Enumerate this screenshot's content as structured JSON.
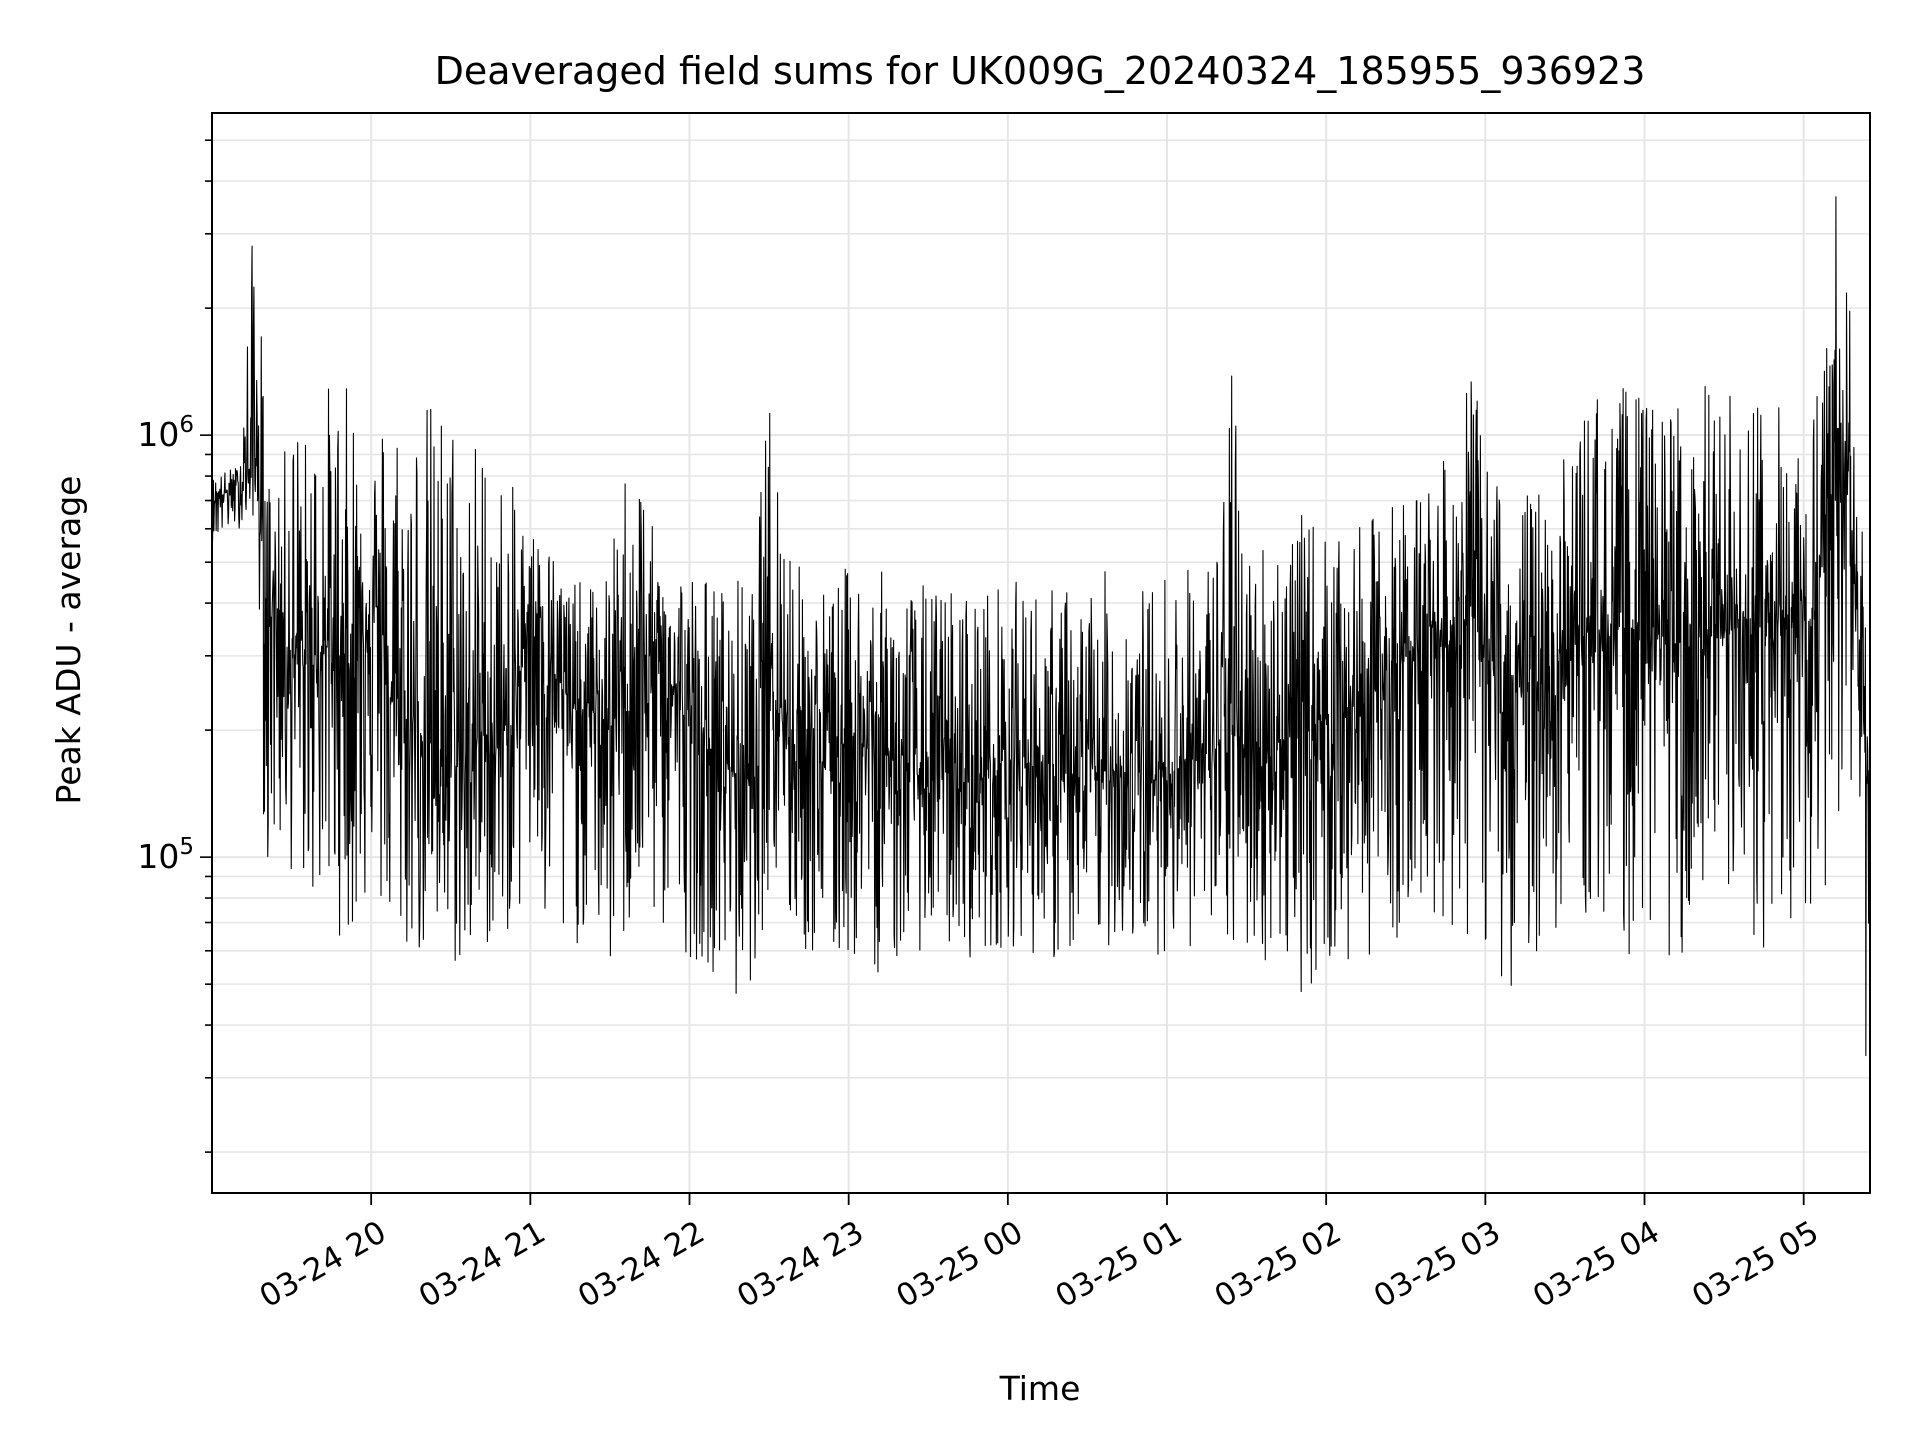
{
  "chart_data": {
    "type": "line",
    "title": "Deaveraged field sums for UK009G_20240324_185955_936923",
    "xlabel": "Time",
    "ylabel": "Peak ADU - average",
    "x_type": "datetime",
    "xlim": [
      "2024-03-24 19:00",
      "2024-03-25 05:25"
    ],
    "ylim": [
      16000,
      5800000
    ],
    "y_scale": "log",
    "grid": true,
    "line_color": "#000000",
    "grid_color": "#e6e6e6",
    "x_ticks": [
      {
        "t": "2024-03-24 20:00",
        "label": "03-24 20"
      },
      {
        "t": "2024-03-24 21:00",
        "label": "03-24 21"
      },
      {
        "t": "2024-03-24 22:00",
        "label": "03-24 22"
      },
      {
        "t": "2024-03-24 23:00",
        "label": "03-24 23"
      },
      {
        "t": "2024-03-25 00:00",
        "label": "03-25 00"
      },
      {
        "t": "2024-03-25 01:00",
        "label": "03-25 01"
      },
      {
        "t": "2024-03-25 02:00",
        "label": "03-25 02"
      },
      {
        "t": "2024-03-25 03:00",
        "label": "03-25 03"
      },
      {
        "t": "2024-03-25 04:00",
        "label": "03-25 04"
      },
      {
        "t": "2024-03-25 05:00",
        "label": "03-25 05"
      }
    ],
    "y_ticks": [
      {
        "value": 100000,
        "base": "10",
        "exp": "5"
      },
      {
        "value": 1000000,
        "base": "10",
        "exp": "6"
      }
    ],
    "series": [
      {
        "x": [
          "2024-03-24 19:00",
          "2024-03-24 19:10",
          "2024-03-24 19:17",
          "2024-03-24 19:20",
          "2024-03-24 19:25",
          "2024-03-24 19:30",
          "2024-03-24 19:36",
          "2024-03-24 19:42",
          "2024-03-24 19:48",
          "2024-03-24 19:54",
          "2024-03-24 20:00",
          "2024-03-24 20:06",
          "2024-03-24 20:12",
          "2024-03-24 20:18",
          "2024-03-24 20:24",
          "2024-03-24 20:30",
          "2024-03-24 20:36",
          "2024-03-24 20:42",
          "2024-03-24 20:48",
          "2024-03-24 20:54",
          "2024-03-24 21:00",
          "2024-03-24 21:06",
          "2024-03-24 21:12",
          "2024-03-24 21:18",
          "2024-03-24 21:24",
          "2024-03-24 21:30",
          "2024-03-24 21:36",
          "2024-03-24 21:42",
          "2024-03-24 21:48",
          "2024-03-24 21:54",
          "2024-03-24 22:00",
          "2024-03-24 22:06",
          "2024-03-24 22:12",
          "2024-03-24 22:18",
          "2024-03-24 22:24",
          "2024-03-24 22:30",
          "2024-03-24 22:36",
          "2024-03-24 22:42",
          "2024-03-24 22:48",
          "2024-03-24 22:54",
          "2024-03-24 23:00",
          "2024-03-24 23:06",
          "2024-03-24 23:12",
          "2024-03-24 23:18",
          "2024-03-24 23:24",
          "2024-03-24 23:30",
          "2024-03-24 23:36",
          "2024-03-24 23:42",
          "2024-03-24 23:48",
          "2024-03-24 23:54",
          "2024-03-25 00:00",
          "2024-03-25 00:06",
          "2024-03-25 00:12",
          "2024-03-25 00:18",
          "2024-03-25 00:24",
          "2024-03-25 00:30",
          "2024-03-25 00:36",
          "2024-03-25 00:42",
          "2024-03-25 00:48",
          "2024-03-25 00:54",
          "2024-03-25 01:00",
          "2024-03-25 01:06",
          "2024-03-25 01:12",
          "2024-03-25 01:18",
          "2024-03-25 01:24",
          "2024-03-25 01:30",
          "2024-03-25 01:36",
          "2024-03-25 01:42",
          "2024-03-25 01:48",
          "2024-03-25 01:54",
          "2024-03-25 02:00",
          "2024-03-25 02:06",
          "2024-03-25 02:12",
          "2024-03-25 02:18",
          "2024-03-25 02:24",
          "2024-03-25 02:30",
          "2024-03-25 02:36",
          "2024-03-25 02:42",
          "2024-03-25 02:48",
          "2024-03-25 02:54",
          "2024-03-25 03:00",
          "2024-03-25 03:06",
          "2024-03-25 03:12",
          "2024-03-25 03:18",
          "2024-03-25 03:24",
          "2024-03-25 03:30",
          "2024-03-25 03:36",
          "2024-03-25 03:42",
          "2024-03-25 03:48",
          "2024-03-25 03:54",
          "2024-03-25 04:00",
          "2024-03-25 04:06",
          "2024-03-25 04:12",
          "2024-03-25 04:18",
          "2024-03-25 04:24",
          "2024-03-25 04:30",
          "2024-03-25 04:36",
          "2024-03-25 04:42",
          "2024-03-25 04:48",
          "2024-03-25 04:54",
          "2024-03-25 05:00",
          "2024-03-25 05:06",
          "2024-03-25 05:10",
          "2024-03-25 05:15",
          "2024-03-25 05:20",
          "2024-03-25 05:25"
        ],
        "y_high": [
          800000,
          850000,
          4600000,
          900000,
          700000,
          1300000,
          1000000,
          1400000,
          1300000,
          1350000,
          900000,
          1350000,
          1250000,
          1300000,
          1250000,
          1300000,
          1050000,
          1050000,
          850000,
          750000,
          600000,
          600000,
          500000,
          450000,
          450000,
          500000,
          900000,
          900000,
          500000,
          550000,
          500000,
          480000,
          450000,
          470000,
          450000,
          1300000,
          800000,
          480000,
          450000,
          450000,
          500000,
          500000,
          480000,
          450000,
          450000,
          450000,
          450000,
          450000,
          450000,
          450000,
          450000,
          460000,
          450000,
          440000,
          450000,
          450000,
          480000,
          460000,
          450000,
          450000,
          500000,
          500000,
          500000,
          550000,
          1550000,
          600000,
          600000,
          650000,
          650000,
          650000,
          600000,
          550000,
          600000,
          650000,
          700000,
          750000,
          800000,
          850000,
          900000,
          1600000,
          900000,
          800000,
          750000,
          750000,
          800000,
          900000,
          1200000,
          1300000,
          1200000,
          1400000,
          1200000,
          1200000,
          1300000,
          1300000,
          1350000,
          1250000,
          1300000,
          1350000,
          1200000,
          1250000,
          1250000,
          1400000,
          3800000,
          4300000,
          1000000,
          300000
        ],
        "y_mid": [
          700000,
          760000,
          850000,
          420000,
          380000,
          300000,
          280000,
          320000,
          300000,
          280000,
          450000,
          250000,
          200000,
          200000,
          180000,
          170000,
          160000,
          200000,
          180000,
          200000,
          450000,
          300000,
          250000,
          220000,
          220000,
          200000,
          250000,
          280000,
          280000,
          250000,
          200000,
          180000,
          170000,
          160000,
          150000,
          350000,
          200000,
          180000,
          170000,
          170000,
          200000,
          180000,
          180000,
          170000,
          160000,
          150000,
          160000,
          150000,
          150000,
          160000,
          170000,
          170000,
          160000,
          150000,
          150000,
          150000,
          160000,
          160000,
          160000,
          150000,
          160000,
          170000,
          170000,
          180000,
          200000,
          180000,
          180000,
          190000,
          190000,
          200000,
          220000,
          220000,
          230000,
          250000,
          260000,
          300000,
          350000,
          350000,
          320000,
          400000,
          300000,
          250000,
          250000,
          250000,
          270000,
          300000,
          330000,
          350000,
          330000,
          350000,
          350000,
          330000,
          320000,
          320000,
          330000,
          330000,
          350000,
          360000,
          330000,
          350000,
          350000,
          400000,
          900000,
          1100000,
          400000,
          120000
        ],
        "y_low": [
          550000,
          600000,
          650000,
          85000,
          100000,
          90000,
          80000,
          75000,
          65000,
          62000,
          85000,
          60000,
          58000,
          56000,
          55000,
          53000,
          52000,
          58000,
          62000,
          68000,
          78000,
          56000,
          48000,
          62000,
          70000,
          50000,
          60000,
          70000,
          65000,
          60000,
          58000,
          55000,
          52000,
          42000,
          52000,
          80000,
          65000,
          58000,
          55000,
          52000,
          56000,
          55000,
          52000,
          55000,
          58000,
          62000,
          60000,
          58000,
          57000,
          59000,
          62000,
          60000,
          58000,
          55000,
          57000,
          58000,
          60000,
          62000,
          60000,
          58000,
          60000,
          62000,
          58000,
          55000,
          56000,
          57000,
          56000,
          55000,
          50000,
          45000,
          55000,
          48000,
          55000,
          60000,
          62000,
          65000,
          70000,
          72000,
          65000,
          60000,
          58000,
          50000,
          48000,
          55000,
          70000,
          60000,
          68000,
          70000,
          62000,
          58000,
          62000,
          60000,
          55000,
          52000,
          58000,
          56000,
          55000,
          60000,
          58000,
          62000,
          70000,
          72000,
          90000,
          150000,
          65000,
          20000
        ]
      }
    ]
  }
}
